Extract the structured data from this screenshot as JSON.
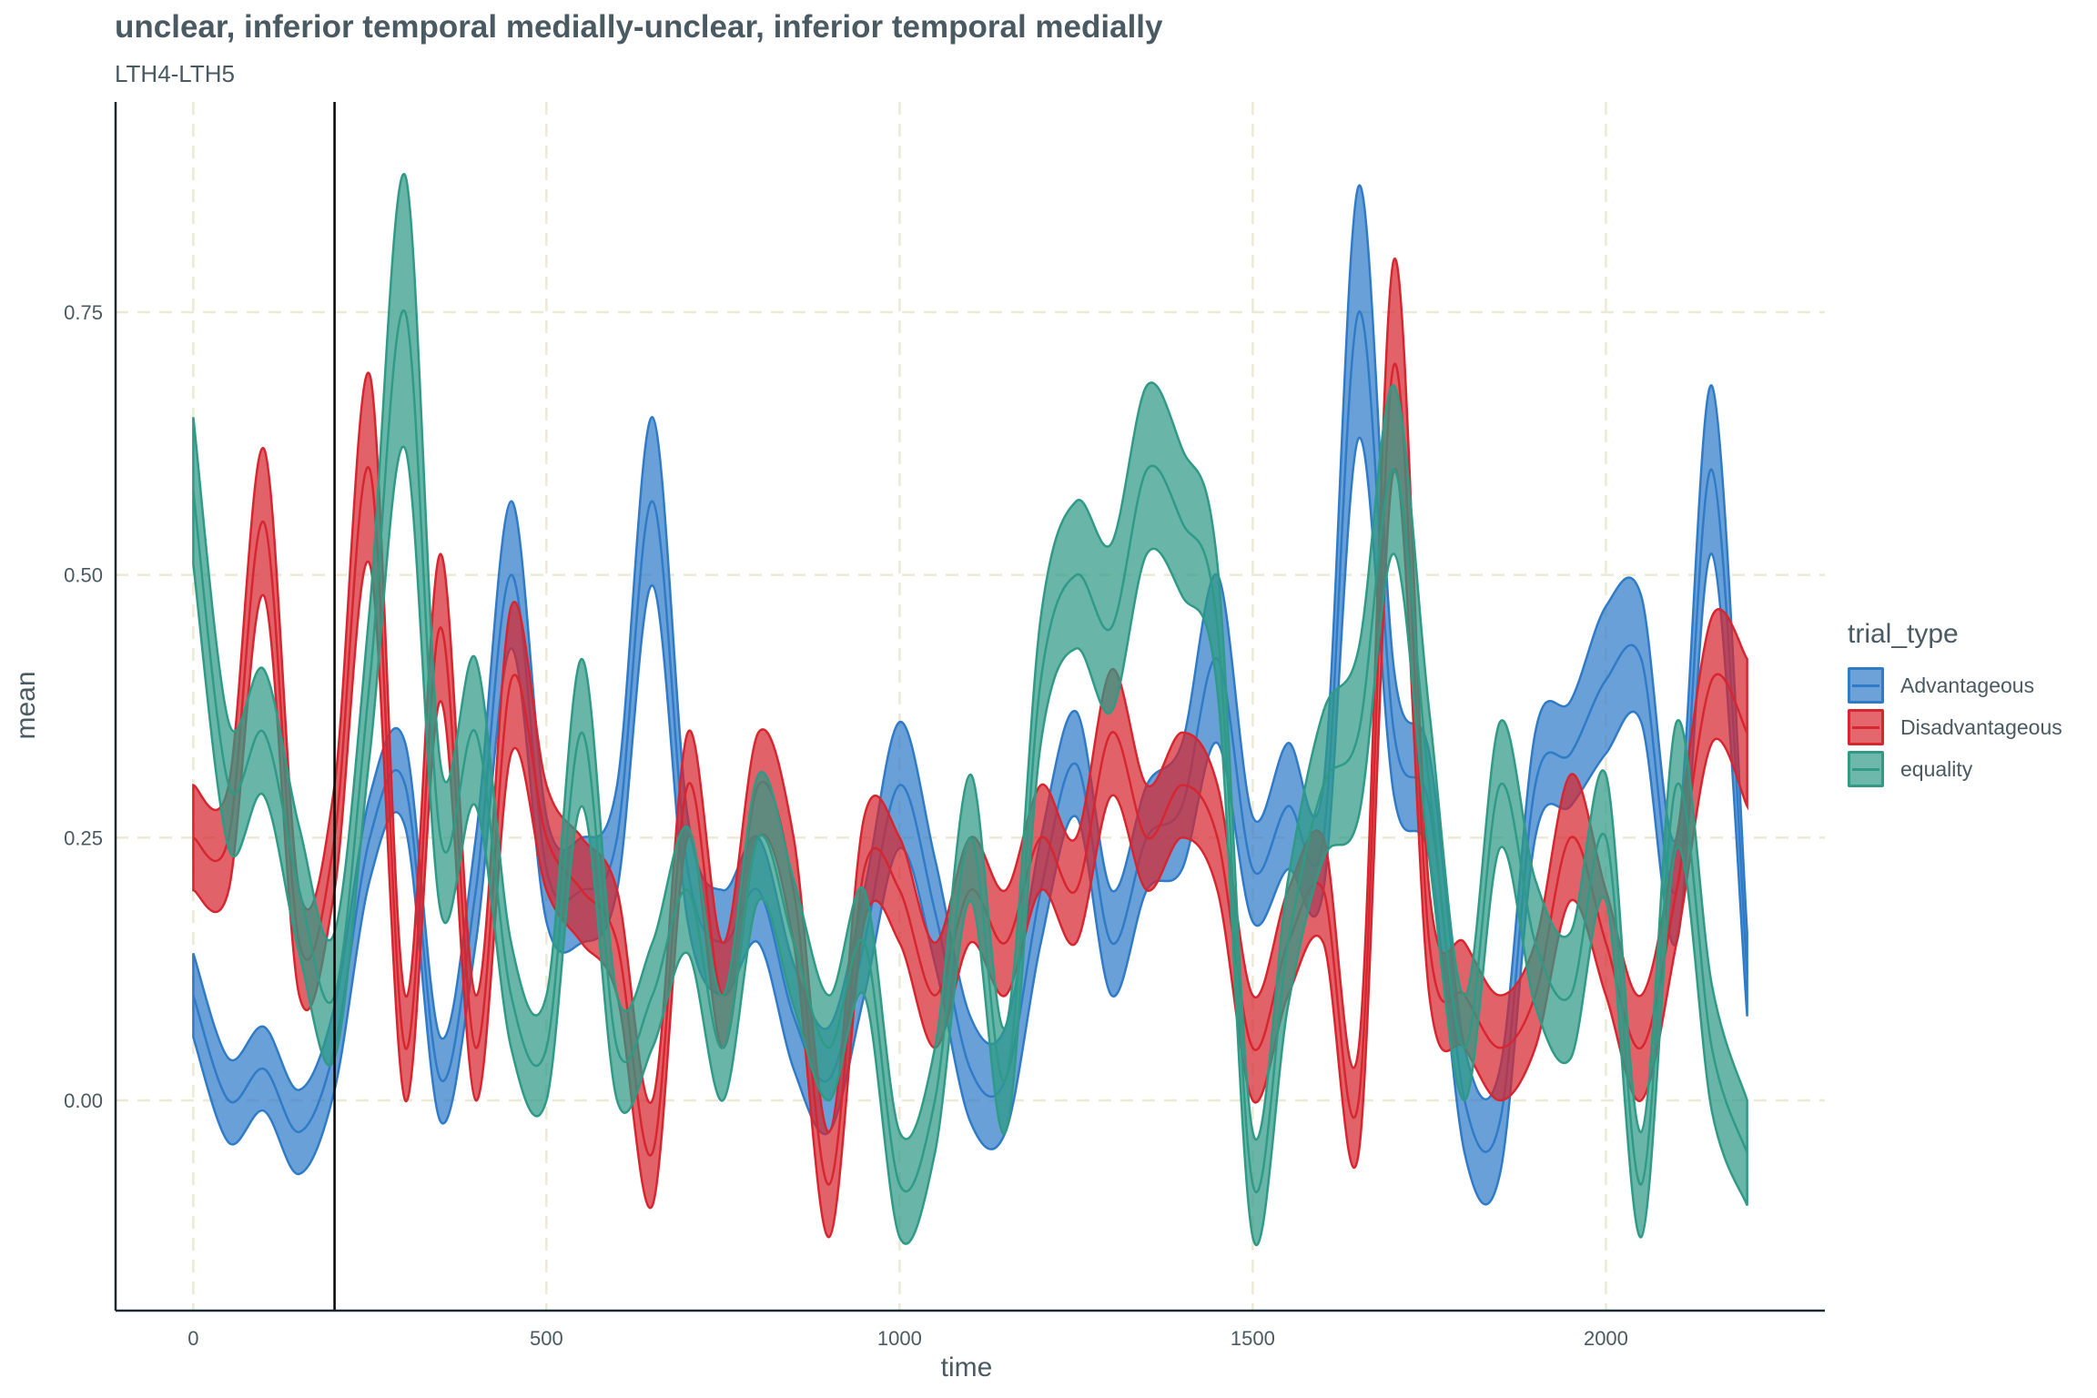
{
  "title": "unclear, inferior temporal medially-unclear, inferior temporal medially",
  "subtitle": "LTH4-LTH5",
  "chart_data": {
    "type": "area",
    "xlabel": "time",
    "ylabel": "mean",
    "xlim": [
      -110,
      2310
    ],
    "ylim": [
      -0.2,
      0.95
    ],
    "xticks": [
      0,
      500,
      1000,
      1500,
      2000
    ],
    "yticks": [
      0.0,
      0.25,
      0.5,
      0.75
    ],
    "ytick_labels": [
      "0.00",
      "0.25",
      "0.50",
      "0.75"
    ],
    "vline_x": 200,
    "grid": true,
    "legend_position": "right",
    "legend_title": "trial_type",
    "x": [
      0,
      50,
      100,
      150,
      200,
      250,
      300,
      350,
      400,
      450,
      500,
      550,
      600,
      650,
      700,
      750,
      800,
      850,
      900,
      950,
      1000,
      1050,
      1100,
      1150,
      1200,
      1250,
      1300,
      1350,
      1400,
      1450,
      1500,
      1550,
      1600,
      1650,
      1700,
      1750,
      1800,
      1850,
      1900,
      1950,
      2000,
      2050,
      2100,
      2150,
      2200
    ],
    "series": [
      {
        "name": "Advantageous",
        "color": "#2f7bc8",
        "mean": [
          0.1,
          0.0,
          0.03,
          -0.03,
          0.05,
          0.25,
          0.3,
          0.02,
          0.2,
          0.5,
          0.22,
          0.2,
          0.25,
          0.57,
          0.22,
          0.15,
          0.2,
          0.08,
          0.02,
          0.15,
          0.3,
          0.18,
          0.03,
          0.02,
          0.2,
          0.32,
          0.15,
          0.25,
          0.28,
          0.42,
          0.22,
          0.28,
          0.25,
          0.75,
          0.35,
          0.28,
          0.0,
          -0.02,
          0.3,
          0.33,
          0.4,
          0.42,
          0.2,
          0.6,
          0.12
        ],
        "half_width": [
          0.04,
          0.04,
          0.04,
          0.04,
          0.04,
          0.04,
          0.04,
          0.04,
          0.05,
          0.07,
          0.05,
          0.05,
          0.05,
          0.08,
          0.05,
          0.05,
          0.05,
          0.05,
          0.05,
          0.05,
          0.06,
          0.05,
          0.05,
          0.05,
          0.05,
          0.05,
          0.05,
          0.05,
          0.06,
          0.08,
          0.05,
          0.06,
          0.05,
          0.12,
          0.06,
          0.05,
          0.05,
          0.05,
          0.05,
          0.05,
          0.07,
          0.06,
          0.05,
          0.08,
          0.04
        ]
      },
      {
        "name": "Disadvantageous",
        "color": "#d7262f",
        "mean": [
          0.25,
          0.25,
          0.55,
          0.15,
          0.25,
          0.6,
          0.05,
          0.45,
          0.05,
          0.4,
          0.25,
          0.2,
          0.15,
          -0.05,
          0.3,
          0.1,
          0.3,
          0.2,
          -0.08,
          0.22,
          0.2,
          0.1,
          0.2,
          0.15,
          0.25,
          0.2,
          0.35,
          0.25,
          0.3,
          0.25,
          0.05,
          0.15,
          0.2,
          0.0,
          0.7,
          0.15,
          0.1,
          0.05,
          0.1,
          0.25,
          0.15,
          0.05,
          0.2,
          0.4,
          0.35
        ],
        "half_width": [
          0.05,
          0.05,
          0.07,
          0.05,
          0.05,
          0.09,
          0.05,
          0.07,
          0.05,
          0.07,
          0.05,
          0.05,
          0.05,
          0.05,
          0.05,
          0.05,
          0.05,
          0.05,
          0.05,
          0.05,
          0.05,
          0.05,
          0.05,
          0.05,
          0.05,
          0.05,
          0.06,
          0.05,
          0.05,
          0.05,
          0.05,
          0.05,
          0.05,
          0.05,
          0.1,
          0.05,
          0.05,
          0.05,
          0.05,
          0.06,
          0.05,
          0.05,
          0.05,
          0.06,
          0.07
        ]
      },
      {
        "name": "equality",
        "color": "#2f9a86",
        "mean": [
          0.58,
          0.3,
          0.35,
          0.2,
          0.1,
          0.4,
          0.75,
          0.25,
          0.35,
          0.1,
          0.05,
          0.35,
          0.05,
          0.1,
          0.2,
          0.05,
          0.25,
          0.15,
          0.05,
          0.15,
          -0.08,
          0.0,
          0.25,
          0.02,
          0.4,
          0.5,
          0.45,
          0.6,
          0.55,
          0.45,
          -0.08,
          0.15,
          0.3,
          0.35,
          0.6,
          0.3,
          0.05,
          0.3,
          0.15,
          0.1,
          0.25,
          -0.08,
          0.3,
          0.05,
          -0.05
        ],
        "half_width": [
          0.07,
          0.06,
          0.06,
          0.06,
          0.06,
          0.07,
          0.13,
          0.07,
          0.07,
          0.05,
          0.05,
          0.07,
          0.05,
          0.05,
          0.06,
          0.05,
          0.06,
          0.06,
          0.05,
          0.05,
          0.05,
          0.05,
          0.06,
          0.05,
          0.06,
          0.07,
          0.08,
          0.08,
          0.07,
          0.06,
          0.05,
          0.06,
          0.07,
          0.08,
          0.08,
          0.07,
          0.05,
          0.06,
          0.06,
          0.06,
          0.06,
          0.05,
          0.06,
          0.06,
          0.05
        ]
      }
    ]
  }
}
